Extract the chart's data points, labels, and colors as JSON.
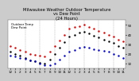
{
  "title": "Milwaukee Weather Outdoor Temperature\nvs Dew Point\n(24 Hours)",
  "title_fontsize": 3.8,
  "background_color": "#cccccc",
  "plot_bg_color": "#ffffff",
  "text_color": "#000000",
  "grid_color": "#888888",
  "hours": [
    0,
    1,
    2,
    3,
    4,
    5,
    6,
    7,
    8,
    9,
    10,
    11,
    12,
    13,
    14,
    15,
    16,
    17,
    18,
    19,
    20,
    21,
    22,
    23
  ],
  "temp": [
    28,
    26,
    24,
    22,
    20,
    19,
    18,
    17,
    22,
    28,
    34,
    40,
    46,
    48,
    49,
    50,
    48,
    46,
    44,
    42,
    40,
    38,
    35,
    33
  ],
  "dew": [
    18,
    17,
    16,
    15,
    13,
    12,
    10,
    8,
    8,
    10,
    14,
    18,
    22,
    24,
    26,
    27,
    26,
    25,
    24,
    23,
    22,
    20,
    18,
    16
  ],
  "feel": [
    22,
    20,
    18,
    16,
    13,
    12,
    11,
    10,
    14,
    20,
    26,
    32,
    38,
    40,
    42,
    43,
    41,
    39,
    37,
    35,
    33,
    31,
    28,
    26
  ],
  "temp_color": "#dd0000",
  "dew_color": "#0000cc",
  "feel_color": "#000000",
  "marker_size": 1.5,
  "ylim": [
    5,
    55
  ],
  "ytick_values": [
    10,
    20,
    30,
    40,
    50
  ],
  "ytick_labels": [
    "10",
    "20",
    "30",
    "40",
    "50"
  ],
  "xlabel_fontsize": 3.0,
  "ylabel_fontsize": 3.0,
  "x_tick_labels": [
    "12",
    "1",
    "2",
    "3",
    "4",
    "5",
    "6",
    "7",
    "8",
    "9",
    "10",
    "11",
    "12",
    "1",
    "2",
    "3",
    "4",
    "5",
    "6",
    "7",
    "8",
    "9",
    "10",
    "11"
  ],
  "vgrid_positions": [
    3,
    6,
    9,
    12,
    15,
    18,
    21
  ],
  "legend_labels": [
    "Outdoor Temp",
    "Dew Point"
  ]
}
